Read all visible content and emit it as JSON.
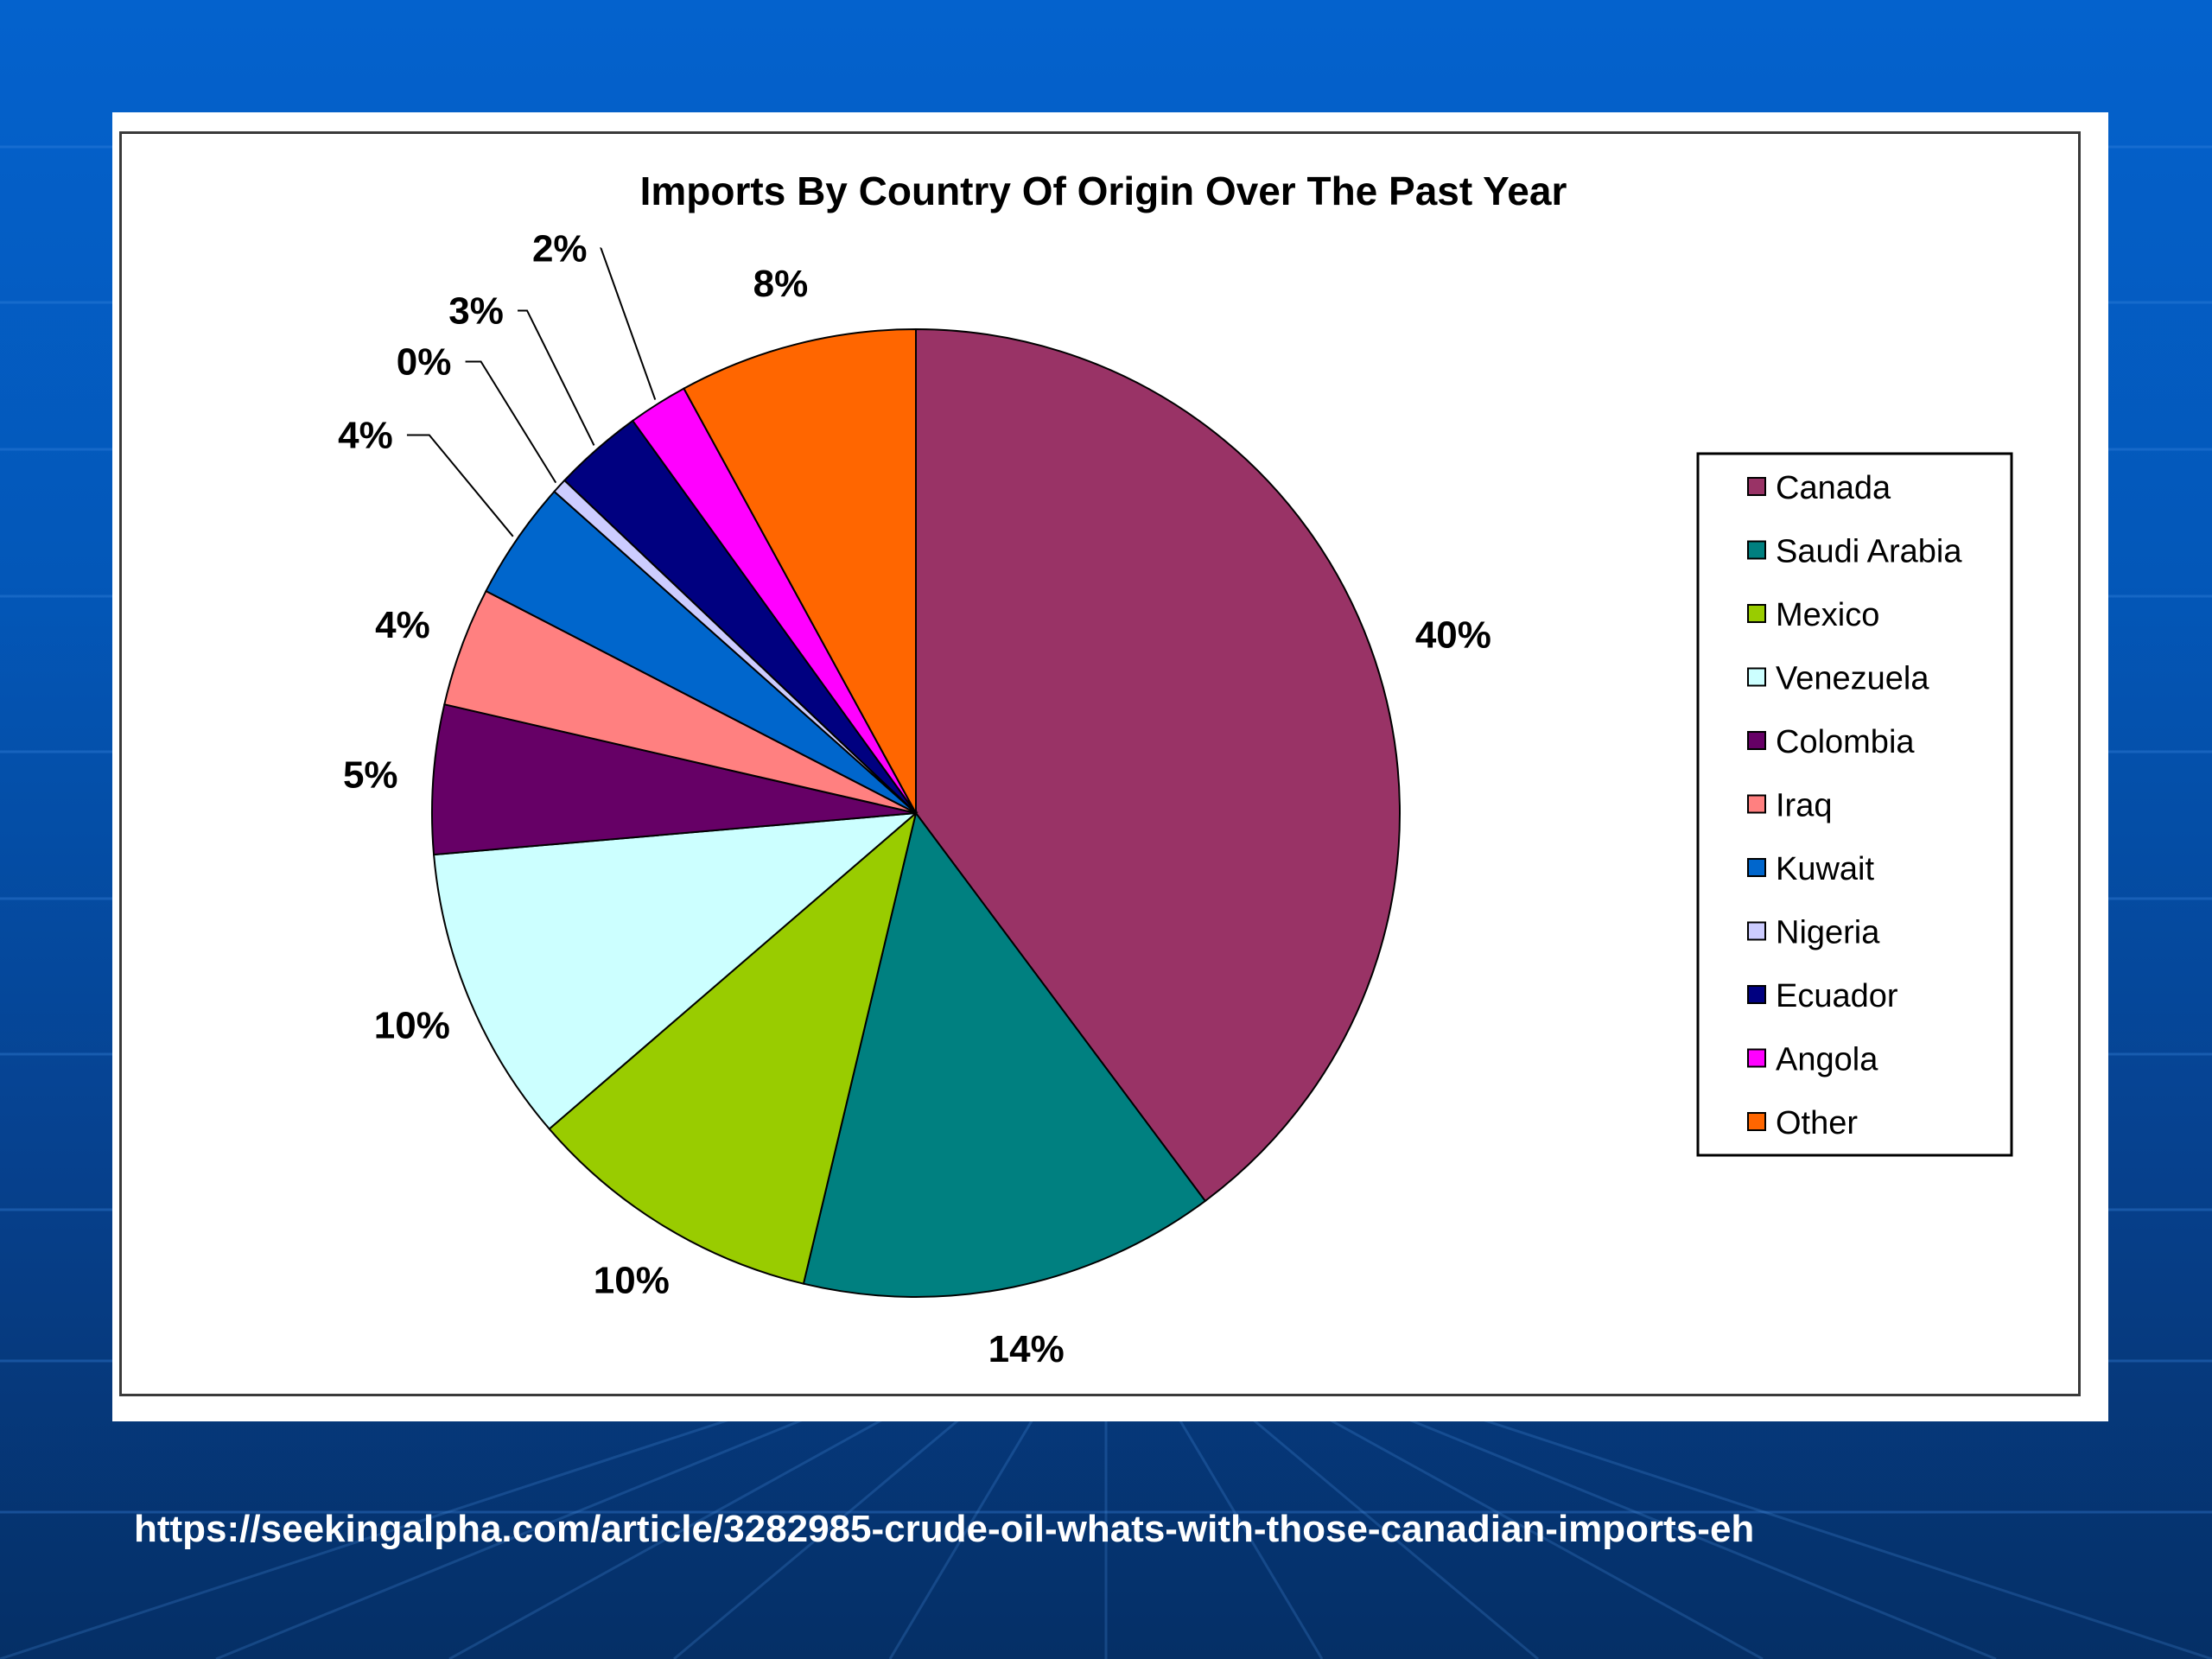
{
  "slide": {
    "source_url": "https://seekingalpha.com/article/3282985-crude-oil-whats-with-those-canadian-imports-eh"
  },
  "chart_data": {
    "type": "pie",
    "title": "Imports By Country Of Origin Over The Past Year",
    "legend_position": "right",
    "slices": [
      {
        "name": "Canada",
        "value": 40,
        "label": "40%",
        "color": "#993366"
      },
      {
        "name": "Saudi Arabia",
        "value": 14,
        "label": "14%",
        "color": "#008080"
      },
      {
        "name": "Mexico",
        "value": 10,
        "label": "10%",
        "color": "#99cc00"
      },
      {
        "name": "Venezuela",
        "value": 10,
        "label": "10%",
        "color": "#ccffff"
      },
      {
        "name": "Colombia",
        "value": 5,
        "label": "5%",
        "color": "#660066"
      },
      {
        "name": "Iraq",
        "value": 4,
        "label": "4%",
        "color": "#ff8080"
      },
      {
        "name": "Kuwait",
        "value": 4,
        "label": "4%",
        "color": "#0066cc"
      },
      {
        "name": "Nigeria",
        "value": 0.5,
        "label": "0%",
        "color": "#ccccff"
      },
      {
        "name": "Ecuador",
        "value": 3,
        "label": "3%",
        "color": "#000080"
      },
      {
        "name": "Angola",
        "value": 2,
        "label": "2%",
        "color": "#ff00ff"
      },
      {
        "name": "Other",
        "value": 8,
        "label": "8%",
        "color": "#ff6600"
      }
    ]
  }
}
